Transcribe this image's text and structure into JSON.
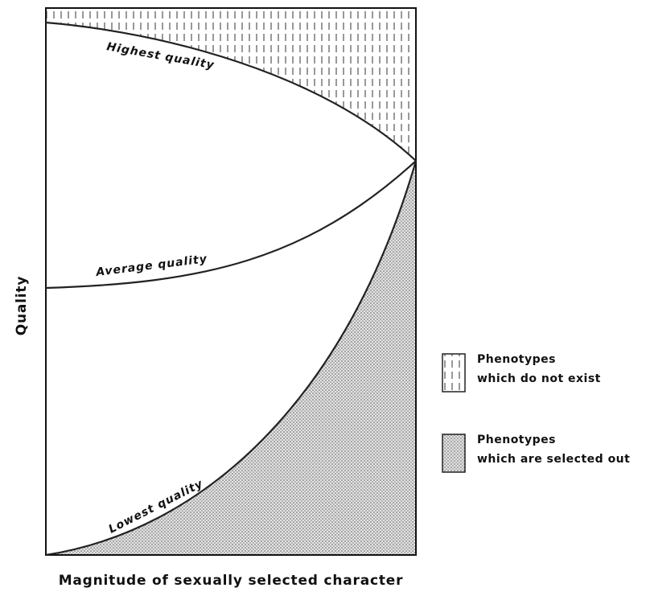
{
  "diagram": {
    "x_axis_label": "Magnitude of sexually selected character",
    "y_axis_label": "Quality",
    "curves": [
      {
        "label": "Highest quality"
      },
      {
        "label": "Average quality"
      },
      {
        "label": "Lowest quality"
      }
    ],
    "legend": [
      {
        "lines": [
          "Phenotypes",
          "which do not exist"
        ]
      },
      {
        "lines": [
          "Phenotypes",
          "which are selected out"
        ]
      }
    ]
  }
}
